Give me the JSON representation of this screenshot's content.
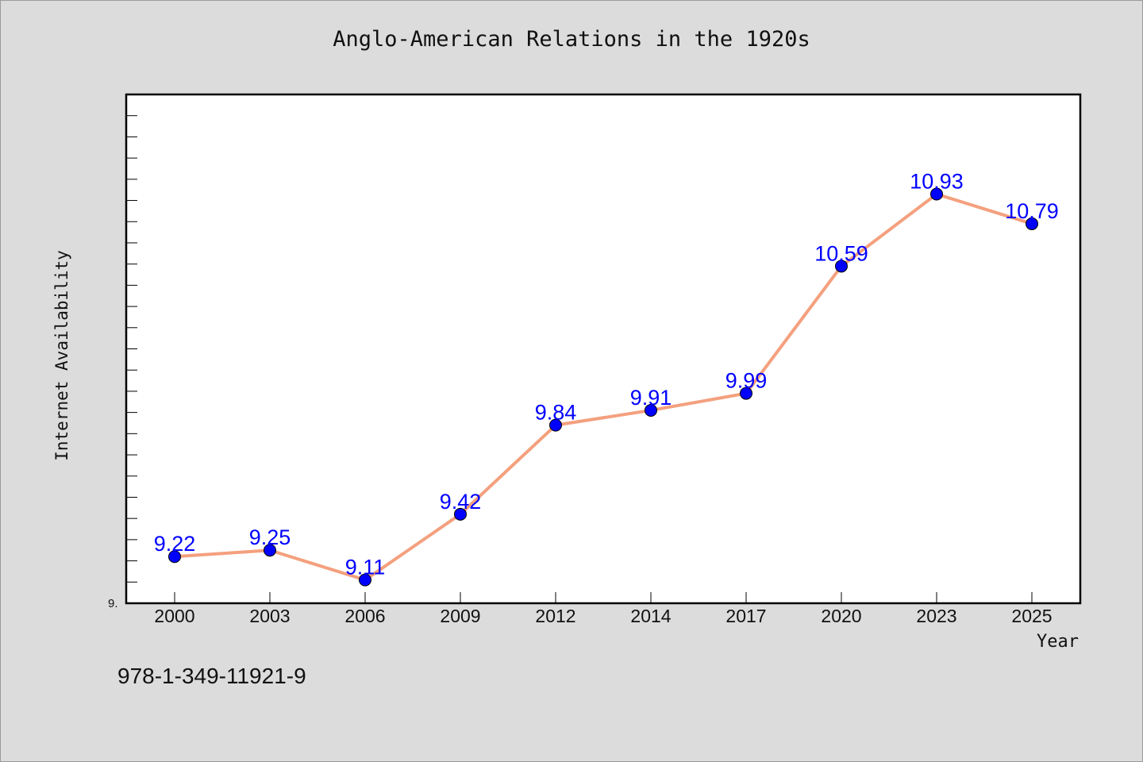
{
  "chart_data": {
    "type": "line",
    "title": "Anglo-American Relations in the 1920s",
    "xlabel": "Year",
    "ylabel": "Internet Availability",
    "categories": [
      "2000",
      "2003",
      "2006",
      "2009",
      "2012",
      "2014",
      "2017",
      "2020",
      "2023",
      "2025"
    ],
    "series": [
      {
        "values": [
          9.22,
          9.25,
          9.11,
          9.42,
          9.84,
          9.91,
          9.99,
          10.59,
          10.93,
          10.79
        ]
      }
    ],
    "data_labels": [
      "9.22",
      "9.25",
      "9.11",
      "9.42",
      "9.84",
      "9.91",
      "9.99",
      "10.59",
      "10.93",
      "10.79"
    ],
    "ylim": [
      9.0,
      11.4
    ],
    "y_tick_label": "9.",
    "grid": false,
    "colors": {
      "line": "#f4a07e",
      "marker": "#0000ff",
      "label": "#0000ff",
      "background": "#dcdcdc",
      "plot": "#ffffff"
    }
  },
  "footer": {
    "isbn": "978-1-349-11921-9"
  }
}
